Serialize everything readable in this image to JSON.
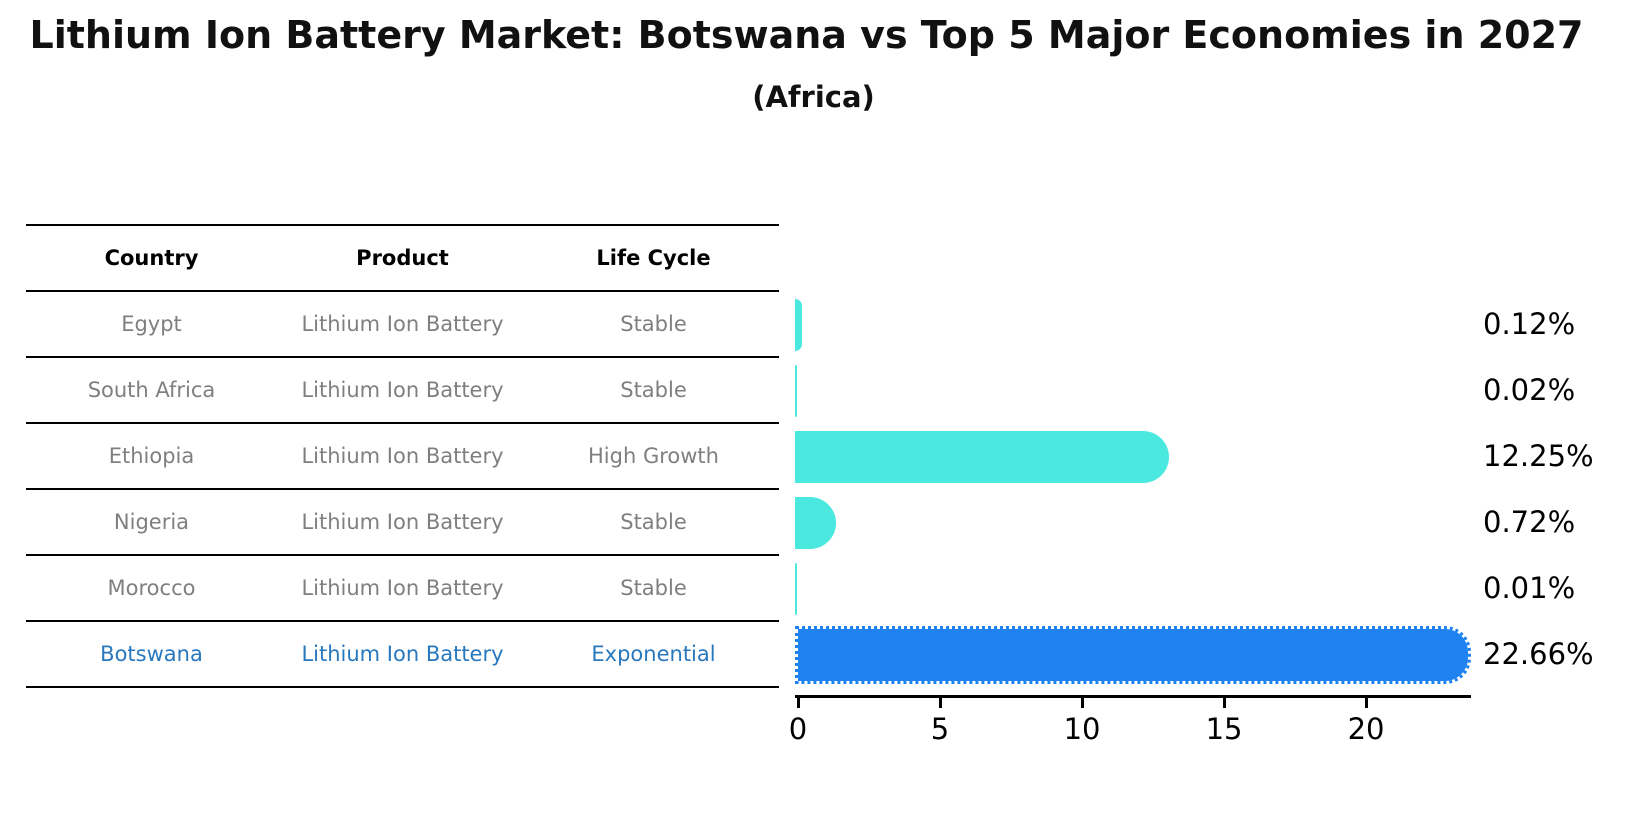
{
  "title": "Lithium Ion Battery Market: Botswana vs Top 5 Major Economies in 2027",
  "subtitle": "(Africa)",
  "table": {
    "headers": [
      "Country",
      "Product",
      "Life Cycle"
    ],
    "rows": [
      {
        "country": "Egypt",
        "product": "Lithium Ion Battery",
        "life_cycle": "Stable",
        "highlight": false
      },
      {
        "country": "South Africa",
        "product": "Lithium Ion Battery",
        "life_cycle": "Stable",
        "highlight": false
      },
      {
        "country": "Ethiopia",
        "product": "Lithium Ion Battery",
        "life_cycle": "High Growth",
        "highlight": false
      },
      {
        "country": "Nigeria",
        "product": "Lithium Ion Battery",
        "life_cycle": "Stable",
        "highlight": false
      },
      {
        "country": "Morocco",
        "product": "Lithium Ion Battery",
        "life_cycle": "Stable",
        "highlight": false
      },
      {
        "country": "Botswana",
        "product": "Lithium Ion Battery",
        "life_cycle": "Exponential",
        "highlight": true
      }
    ]
  },
  "chart_data": {
    "type": "bar",
    "orientation": "horizontal",
    "title": "Lithium Ion Battery Market: Botswana vs Top 5 Major Economies in 2027 (Africa)",
    "categories": [
      "Egypt",
      "South Africa",
      "Ethiopia",
      "Nigeria",
      "Morocco",
      "Botswana"
    ],
    "values": [
      0.12,
      0.02,
      12.25,
      0.72,
      0.01,
      22.66
    ],
    "value_labels": [
      "0.12%",
      "0.02%",
      "12.25%",
      "0.72%",
      "0.01%",
      "22.66%"
    ],
    "highlight_index": 5,
    "xtick_labels": [
      "0",
      "5",
      "10",
      "15",
      "20"
    ],
    "xtick_values": [
      0,
      5,
      10,
      15,
      20
    ],
    "xlim": [
      0,
      23.8
    ],
    "grid": false,
    "legend": "none"
  },
  "colors": {
    "bar_default": "#4be8e0",
    "bar_highlight": "#1e82f0",
    "highlight_text": "#2878be",
    "table_text": "#7f7f7f",
    "header_text": "#000000",
    "value_label": "#000000",
    "axis": "#000000"
  }
}
